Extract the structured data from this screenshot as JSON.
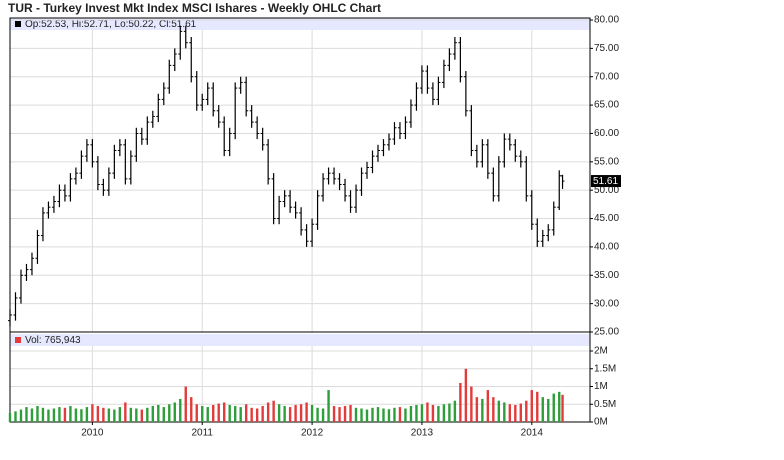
{
  "chart_data": {
    "type": "ohlc",
    "title": "TUR - Turkey Invest Mkt Index MSCI Ishares - Weekly OHLC Chart",
    "price_legend": "Op:52.53, Hi:52.71, Lo:50.22, Cl:51.61",
    "volume_legend": "Vol: 765,943",
    "grid": true,
    "bar_color": "#000000",
    "up_color": "#2e9e3a",
    "down_color": "#e23b3b",
    "legend_band_color": "#e6e8ff",
    "xlim": [
      2009.25,
      2014.53
    ],
    "xticks": [
      2010,
      2011,
      2012,
      2013,
      2014
    ],
    "ylim": [
      25,
      80
    ],
    "yticks": [
      {
        "value": 25,
        "label": "25.00"
      },
      {
        "value": 30,
        "label": "30.00"
      },
      {
        "value": 35,
        "label": "35.00"
      },
      {
        "value": 40,
        "label": "40.00"
      },
      {
        "value": 45,
        "label": "45.00"
      },
      {
        "value": 50,
        "label": "50.00"
      },
      {
        "value": 55,
        "label": "55.00"
      },
      {
        "value": 60,
        "label": "60.00"
      },
      {
        "value": 65,
        "label": "65.00"
      },
      {
        "value": 70,
        "label": "70.00"
      },
      {
        "value": 75,
        "label": "75.00"
      },
      {
        "value": 80,
        "label": "80.00"
      }
    ],
    "vlim": [
      0,
      2000000
    ],
    "vticks": [
      {
        "value": 0,
        "label": "0M"
      },
      {
        "value": 500000,
        "label": "0.5M"
      },
      {
        "value": 1000000,
        "label": "1M"
      },
      {
        "value": 1500000,
        "label": "1.5M"
      },
      {
        "value": 2000000,
        "label": "2M"
      }
    ],
    "x": [
      2009.25,
      2009.3,
      2009.35,
      2009.4,
      2009.45,
      2009.5,
      2009.55,
      2009.6,
      2009.65,
      2009.7,
      2009.75,
      2009.8,
      2009.85,
      2009.9,
      2009.95,
      2010.0,
      2010.05,
      2010.1,
      2010.15,
      2010.2,
      2010.25,
      2010.3,
      2010.35,
      2010.4,
      2010.45,
      2010.5,
      2010.55,
      2010.6,
      2010.65,
      2010.7,
      2010.75,
      2010.8,
      2010.85,
      2010.9,
      2010.95,
      2011.0,
      2011.05,
      2011.1,
      2011.15,
      2011.2,
      2011.25,
      2011.3,
      2011.35,
      2011.4,
      2011.45,
      2011.5,
      2011.55,
      2011.6,
      2011.65,
      2011.7,
      2011.75,
      2011.8,
      2011.85,
      2011.9,
      2011.95,
      2012.0,
      2012.05,
      2012.1,
      2012.15,
      2012.2,
      2012.25,
      2012.3,
      2012.35,
      2012.4,
      2012.45,
      2012.5,
      2012.55,
      2012.6,
      2012.65,
      2012.7,
      2012.75,
      2012.8,
      2012.85,
      2012.9,
      2012.95,
      2013.0,
      2013.05,
      2013.1,
      2013.15,
      2013.2,
      2013.25,
      2013.3,
      2013.35,
      2013.4,
      2013.45,
      2013.5,
      2013.55,
      2013.6,
      2013.65,
      2013.7,
      2013.75,
      2013.8,
      2013.85,
      2013.9,
      2013.95,
      2014.0,
      2014.05,
      2014.1,
      2014.15,
      2014.2,
      2014.25,
      2014.28
    ],
    "open": [
      27,
      28,
      31,
      35,
      36,
      38,
      42,
      46,
      47,
      48,
      50,
      49,
      52,
      53,
      56,
      58,
      55,
      51,
      50,
      53,
      57,
      58,
      52,
      56,
      60,
      59,
      62,
      63,
      66,
      68,
      72,
      74,
      78,
      76,
      70,
      65,
      66,
      68,
      64,
      62,
      57,
      60,
      68,
      69,
      64,
      62,
      60,
      58,
      52,
      45,
      48,
      49,
      47,
      46,
      43,
      41,
      44,
      49,
      52,
      53,
      52,
      51,
      49,
      47,
      50,
      53,
      54,
      56,
      57,
      58,
      59,
      61,
      60,
      62,
      65,
      68,
      71,
      68,
      66,
      69,
      72,
      74,
      76,
      70,
      64,
      57,
      55,
      58,
      53,
      49,
      55,
      59,
      58,
      56,
      55,
      49,
      44,
      41,
      42,
      43,
      47,
      52.53
    ],
    "high": [
      29,
      32,
      36,
      37,
      39,
      43,
      47,
      48,
      49,
      51,
      51,
      53,
      54,
      57,
      59,
      59,
      56,
      52,
      54,
      58,
      59,
      59,
      57,
      61,
      61,
      63,
      64,
      67,
      69,
      73,
      75,
      79,
      79,
      77,
      71,
      67,
      69,
      69,
      65,
      63,
      61,
      69,
      70,
      70,
      65,
      63,
      61,
      59,
      53,
      49,
      50,
      50,
      48,
      47,
      44,
      45,
      50,
      53,
      54,
      54,
      53,
      52,
      50,
      51,
      54,
      55,
      57,
      58,
      59,
      60,
      62,
      62,
      63,
      66,
      69,
      72,
      72,
      69,
      70,
      73,
      75,
      77,
      77,
      71,
      65,
      58,
      59,
      59,
      54,
      56,
      60,
      60,
      59,
      57,
      56,
      50,
      45,
      43,
      44,
      48,
      53.5,
      52.71
    ],
    "low": [
      26,
      27,
      30,
      34,
      35,
      37,
      41,
      45,
      46,
      47,
      48,
      48,
      51,
      52,
      55,
      54,
      50,
      49,
      49,
      52,
      56,
      51,
      51,
      55,
      58,
      58,
      61,
      62,
      65,
      67,
      71,
      73,
      75,
      69,
      64,
      64,
      65,
      63,
      61,
      56,
      56,
      59,
      67,
      63,
      61,
      59,
      57,
      51,
      44,
      44,
      47,
      46,
      45,
      42,
      40,
      40,
      43,
      48,
      51,
      51,
      50,
      48,
      46,
      46,
      49,
      52,
      53,
      55,
      56,
      57,
      58,
      59,
      59,
      61,
      64,
      67,
      67,
      65,
      65,
      68,
      71,
      73,
      69,
      63,
      56,
      54,
      54,
      52,
      48,
      48,
      54,
      57,
      55,
      54,
      48,
      43,
      40,
      40,
      41,
      42,
      46.5,
      50.22
    ],
    "close": [
      28,
      31,
      35,
      36,
      38,
      42,
      46,
      47,
      48,
      50,
      49,
      52,
      53,
      56,
      58,
      55,
      51,
      50,
      53,
      57,
      58,
      52,
      56,
      60,
      59,
      62,
      63,
      66,
      68,
      72,
      74,
      78,
      76,
      70,
      65,
      66,
      68,
      64,
      62,
      57,
      60,
      68,
      69,
      64,
      62,
      60,
      58,
      52,
      45,
      48,
      49,
      47,
      46,
      43,
      41,
      44,
      49,
      52,
      53,
      52,
      51,
      49,
      47,
      50,
      53,
      54,
      56,
      57,
      58,
      59,
      61,
      60,
      62,
      65,
      68,
      71,
      68,
      66,
      69,
      72,
      74,
      76,
      70,
      64,
      57,
      55,
      58,
      53,
      49,
      55,
      59,
      58,
      56,
      55,
      49,
      44,
      41,
      42,
      43,
      47,
      52.53,
      51.61
    ],
    "volume": [
      250000,
      300000,
      350000,
      420000,
      380000,
      450000,
      400000,
      350000,
      380000,
      420000,
      400000,
      450000,
      380000,
      360000,
      420000,
      500000,
      450000,
      400000,
      380000,
      350000,
      420000,
      550000,
      400000,
      380000,
      350000,
      400000,
      450000,
      480000,
      420000,
      500000,
      550000,
      650000,
      1000000,
      700000,
      500000,
      450000,
      420000,
      480000,
      520000,
      550000,
      480000,
      450000,
      420000,
      500000,
      400000,
      380000,
      450000,
      550000,
      600000,
      500000,
      450000,
      420000,
      480000,
      500000,
      550000,
      480000,
      400000,
      380000,
      900000,
      450000,
      420000,
      450000,
      480000,
      400000,
      380000,
      350000,
      400000,
      420000,
      380000,
      360000,
      400000,
      420000,
      380000,
      450000,
      480000,
      500000,
      550000,
      480000,
      450000,
      500000,
      520000,
      600000,
      1100000,
      1500000,
      1000000,
      700000,
      650000,
      900000,
      700000,
      600000,
      550000,
      500000,
      480000,
      520000,
      600000,
      900000,
      850000,
      700000,
      650000,
      800000,
      850000,
      765943
    ]
  }
}
